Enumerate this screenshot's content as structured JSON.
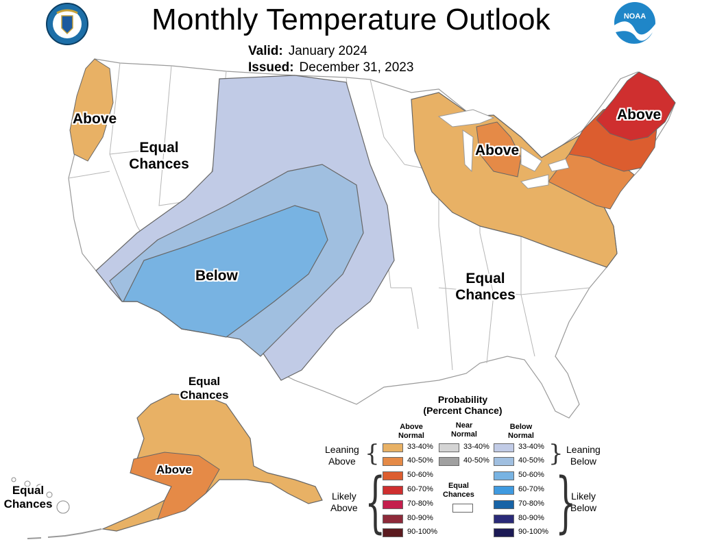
{
  "header": {
    "title": "Monthly Temperature Outlook",
    "valid_label": "Valid:",
    "valid_value": "January 2024",
    "issued_label": "Issued:",
    "issued_value": "December 31, 2023"
  },
  "logos": [
    {
      "name": "doc-seal-logo",
      "text": "DEPARTMENT OF COMMERCE"
    },
    {
      "name": "noaa-logo",
      "text": "NOAA"
    }
  ],
  "map_labels": {
    "pacific_nw": "Above",
    "west_equal_1": "Equal",
    "west_equal_2": "Chances",
    "southwest": "Below",
    "great_lakes": "Above",
    "new_england": "Above",
    "southeast_equal_1": "Equal",
    "southeast_equal_2": "Chances",
    "alaska_equal_1": "Equal",
    "alaska_equal_2": "Chances",
    "alaska_above": "Above",
    "hawaii_equal_1": "Equal",
    "hawaii_equal_2": "Chances"
  },
  "legend": {
    "title_1": "Probability",
    "title_2": "(Percent Chance)",
    "above_head_1": "Above",
    "above_head_2": "Normal",
    "near_head_1": "Near",
    "near_head_2": "Normal",
    "below_head_1": "Below",
    "below_head_2": "Normal",
    "leaning_above_1": "Leaning",
    "leaning_above_2": "Above",
    "leaning_below_1": "Leaning",
    "leaning_below_2": "Below",
    "likely_above_1": "Likely",
    "likely_above_2": "Above",
    "likely_below_1": "Likely",
    "likely_below_2": "Below",
    "equal_1": "Equal",
    "equal_2": "Chances",
    "above": [
      {
        "label": "33-40%",
        "color": "#e8b165"
      },
      {
        "label": "40-50%",
        "color": "#e58a47"
      },
      {
        "label": "50-60%",
        "color": "#dc5d2f"
      },
      {
        "label": "60-70%",
        "color": "#cf2f2f"
      },
      {
        "label": "70-80%",
        "color": "#c41f4d"
      },
      {
        "label": "80-90%",
        "color": "#8e2a3a"
      },
      {
        "label": "90-100%",
        "color": "#5b1a1f"
      }
    ],
    "near": [
      {
        "label": "33-40%",
        "color": "#d4d4d4"
      },
      {
        "label": "40-50%",
        "color": "#a0a0a0"
      }
    ],
    "below": [
      {
        "label": "33-40%",
        "color": "#c1cbe6"
      },
      {
        "label": "40-50%",
        "color": "#a0bfe0"
      },
      {
        "label": "50-60%",
        "color": "#78b3e2"
      },
      {
        "label": "60-70%",
        "color": "#3f9ae0"
      },
      {
        "label": "70-80%",
        "color": "#1763a6"
      },
      {
        "label": "80-90%",
        "color": "#2a2a78"
      },
      {
        "label": "90-100%",
        "color": "#1c1a55"
      }
    ],
    "equal_color": "#ffffff"
  }
}
